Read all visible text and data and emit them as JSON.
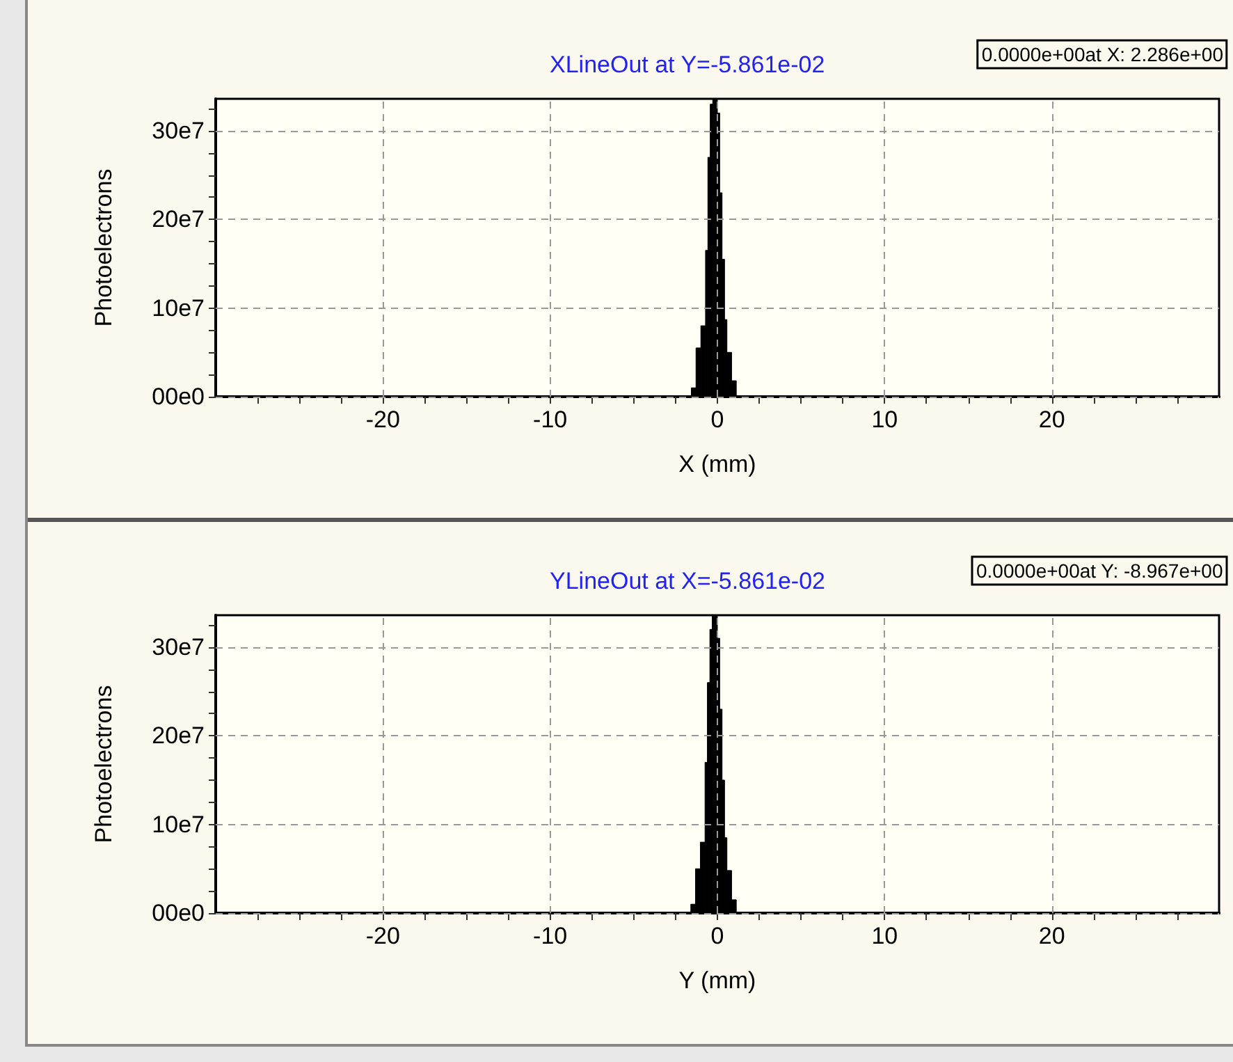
{
  "chart_data": [
    {
      "type": "histogram",
      "title": "XLineOut at Y=-5.861e-02",
      "xlabel": "X (mm)",
      "ylabel": "Photoelectrons",
      "annotations": [
        "0.0000e+00at X: 2.286e+00"
      ],
      "color": "#000000",
      "bins": [
        -1.56,
        -1.28,
        -0.99,
        -0.71,
        -0.57,
        -0.43,
        -0.28,
        0.0,
        0.14,
        0.28,
        0.43,
        0.57,
        0.85,
        1.13
      ],
      "values": [
        10000000,
        55000000,
        80000000,
        165000000,
        270000000,
        330000000,
        335000000,
        320000000,
        230000000,
        155000000,
        87000000,
        50000000,
        18000000
      ],
      "xlim": [
        -30,
        30
      ],
      "ylim": [
        0,
        336000000
      ],
      "xticks": [
        {
          "value": -27.5,
          "label": null
        },
        {
          "value": -25,
          "label": null
        },
        {
          "value": -22.5,
          "label": null
        },
        {
          "value": -20,
          "label": "-20"
        },
        {
          "value": -17.5,
          "label": null
        },
        {
          "value": -15,
          "label": null
        },
        {
          "value": -12.5,
          "label": null
        },
        {
          "value": -10,
          "label": "-10"
        },
        {
          "value": -7.5,
          "label": null
        },
        {
          "value": -5,
          "label": null
        },
        {
          "value": -2.5,
          "label": null
        },
        {
          "value": 0,
          "label": "0"
        },
        {
          "value": 2.5,
          "label": null
        },
        {
          "value": 5,
          "label": null
        },
        {
          "value": 7.5,
          "label": null
        },
        {
          "value": 10,
          "label": "10"
        },
        {
          "value": 12.5,
          "label": null
        },
        {
          "value": 15,
          "label": null
        },
        {
          "value": 17.5,
          "label": null
        },
        {
          "value": 20,
          "label": "20"
        },
        {
          "value": 22.5,
          "label": null
        },
        {
          "value": 25,
          "label": null
        },
        {
          "value": 27.5,
          "label": null
        }
      ],
      "yticks": [
        {
          "value": 0,
          "label": "00e0"
        },
        {
          "value": 25000000,
          "label": null
        },
        {
          "value": 50000000,
          "label": null
        },
        {
          "value": 75000000,
          "label": null
        },
        {
          "value": 100000000,
          "label": "10e7"
        },
        {
          "value": 125000000,
          "label": null
        },
        {
          "value": 150000000,
          "label": null
        },
        {
          "value": 175000000,
          "label": null
        },
        {
          "value": 200000000,
          "label": "20e7"
        },
        {
          "value": 225000000,
          "label": null
        },
        {
          "value": 250000000,
          "label": null
        },
        {
          "value": 275000000,
          "label": null
        },
        {
          "value": 300000000,
          "label": "30e7"
        },
        {
          "value": 325000000,
          "label": null
        }
      ],
      "grid": true
    },
    {
      "type": "histogram",
      "title": "YLineOut at X=-5.861e-02",
      "xlabel": "Y (mm)",
      "ylabel": "Photoelectrons",
      "annotations": [
        "0.0000e+00at Y: -8.967e+00"
      ],
      "color": "#000000",
      "bins": [
        -1.59,
        -1.31,
        -1.02,
        -0.74,
        -0.6,
        -0.45,
        -0.31,
        0.0,
        0.14,
        0.28,
        0.43,
        0.57,
        0.85,
        1.13
      ],
      "values": [
        10000000,
        50000000,
        80000000,
        170000000,
        260000000,
        320000000,
        335000000,
        310000000,
        230000000,
        150000000,
        85000000,
        48000000,
        15000000
      ],
      "xlim": [
        -30,
        30
      ],
      "ylim": [
        0,
        336000000
      ],
      "xticks": [
        {
          "value": -27.5,
          "label": null
        },
        {
          "value": -25,
          "label": null
        },
        {
          "value": -22.5,
          "label": null
        },
        {
          "value": -20,
          "label": "-20"
        },
        {
          "value": -17.5,
          "label": null
        },
        {
          "value": -15,
          "label": null
        },
        {
          "value": -12.5,
          "label": null
        },
        {
          "value": -10,
          "label": "-10"
        },
        {
          "value": -7.5,
          "label": null
        },
        {
          "value": -5,
          "label": null
        },
        {
          "value": -2.5,
          "label": null
        },
        {
          "value": 0,
          "label": "0"
        },
        {
          "value": 2.5,
          "label": null
        },
        {
          "value": 5,
          "label": null
        },
        {
          "value": 7.5,
          "label": null
        },
        {
          "value": 10,
          "label": "10"
        },
        {
          "value": 12.5,
          "label": null
        },
        {
          "value": 15,
          "label": null
        },
        {
          "value": 17.5,
          "label": null
        },
        {
          "value": 20,
          "label": "20"
        },
        {
          "value": 22.5,
          "label": null
        },
        {
          "value": 25,
          "label": null
        },
        {
          "value": 27.5,
          "label": null
        }
      ],
      "yticks": [
        {
          "value": 0,
          "label": "00e0"
        },
        {
          "value": 25000000,
          "label": null
        },
        {
          "value": 50000000,
          "label": null
        },
        {
          "value": 75000000,
          "label": null
        },
        {
          "value": 100000000,
          "label": "10e7"
        },
        {
          "value": 125000000,
          "label": null
        },
        {
          "value": 150000000,
          "label": null
        },
        {
          "value": 175000000,
          "label": null
        },
        {
          "value": 200000000,
          "label": "20e7"
        },
        {
          "value": 225000000,
          "label": null
        },
        {
          "value": 250000000,
          "label": null
        },
        {
          "value": 275000000,
          "label": null
        },
        {
          "value": 300000000,
          "label": "30e7"
        },
        {
          "value": 325000000,
          "label": null
        }
      ],
      "grid": true
    }
  ]
}
